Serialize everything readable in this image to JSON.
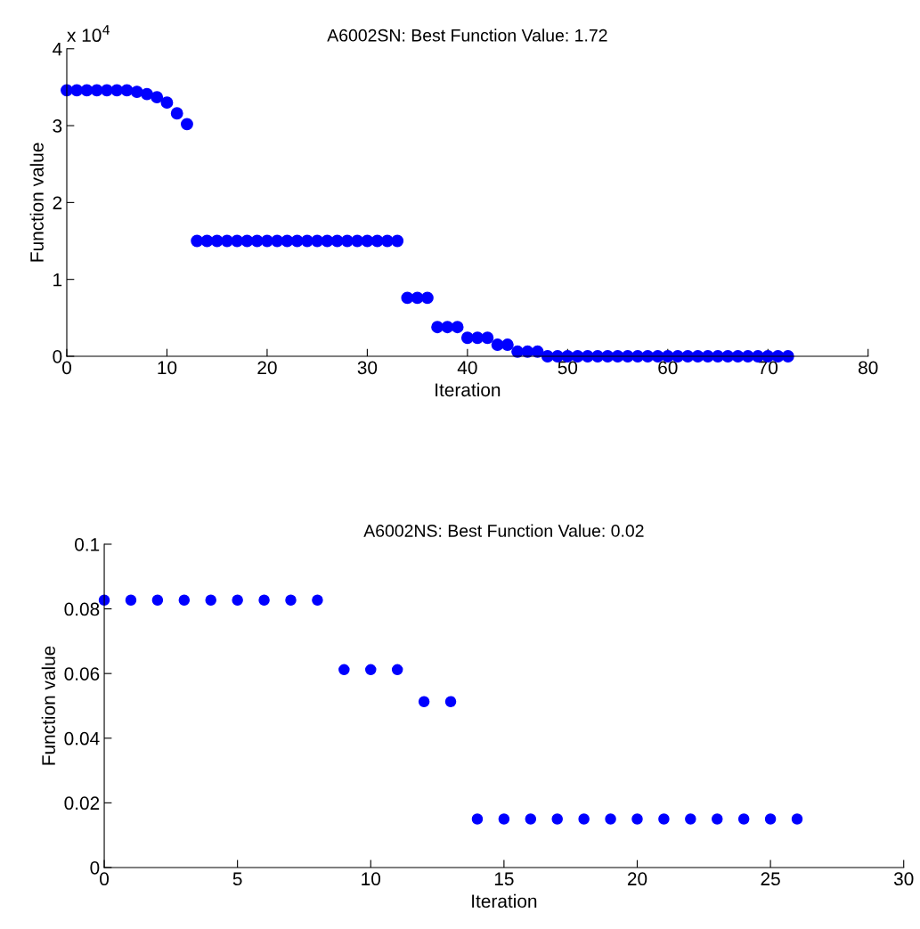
{
  "chart_data": [
    {
      "type": "scatter",
      "title": "A6002SN: Best Function Value: 1.72",
      "xlabel": "Iteration",
      "ylabel": "Function value",
      "annotations": [
        "x 10$^{4}$"
      ],
      "marker": "circle",
      "grid": false,
      "xlim": [
        0,
        80
      ],
      "xticks": [
        0,
        10,
        20,
        30,
        40,
        50,
        60,
        70,
        80
      ],
      "ylim": [
        0,
        4
      ],
      "yticks": [
        0,
        1,
        2,
        3,
        4
      ],
      "series": [
        {
          "color": "#0000ff",
          "x": [
            0,
            1,
            2,
            3,
            4,
            5,
            6,
            7,
            8,
            9,
            10,
            11,
            12,
            13,
            14,
            15,
            16,
            17,
            18,
            19,
            20,
            21,
            22,
            23,
            24,
            25,
            26,
            27,
            28,
            29,
            30,
            31,
            32,
            33,
            34,
            35,
            36,
            37,
            38,
            39,
            40,
            41,
            42,
            43,
            44,
            45,
            46,
            47,
            48,
            49,
            50,
            51,
            52,
            53,
            54,
            55,
            56,
            57,
            58,
            59,
            60,
            61,
            62,
            63,
            64,
            65,
            66,
            67,
            68,
            69,
            70,
            71,
            72
          ],
          "values": [
            3.46,
            3.46,
            3.46,
            3.46,
            3.46,
            3.46,
            3.46,
            3.44,
            3.41,
            3.37,
            3.3,
            3.16,
            3.02,
            1.5,
            1.5,
            1.5,
            1.5,
            1.5,
            1.5,
            1.5,
            1.5,
            1.5,
            1.5,
            1.5,
            1.5,
            1.5,
            1.5,
            1.5,
            1.5,
            1.5,
            1.5,
            1.5,
            1.5,
            1.5,
            0.76,
            0.76,
            0.76,
            0.38,
            0.38,
            0.38,
            0.24,
            0.24,
            0.24,
            0.15,
            0.15,
            0.06,
            0.06,
            0.06,
            0,
            0,
            0,
            0,
            0,
            0,
            0,
            0,
            0,
            0,
            0,
            0,
            0,
            0,
            0,
            0,
            0,
            0,
            0,
            0,
            0,
            0,
            0,
            0,
            0
          ]
        }
      ]
    },
    {
      "type": "scatter",
      "title": "A6002NS: Best Function Value: 0.02",
      "xlabel": "Iteration",
      "ylabel": "Function value",
      "marker": "circle",
      "grid": false,
      "xlim": [
        0,
        30
      ],
      "xticks": [
        0,
        5,
        10,
        15,
        20,
        25,
        30
      ],
      "ylim": [
        0,
        0.1
      ],
      "yticks": [
        0,
        0.02,
        0.04,
        0.06,
        0.08,
        0.1
      ],
      "series": [
        {
          "color": "#0000ff",
          "x": [
            0,
            1,
            2,
            3,
            4,
            5,
            6,
            7,
            8,
            9,
            10,
            11,
            12,
            13,
            14,
            15,
            16,
            17,
            18,
            19,
            20,
            21,
            22,
            23,
            24,
            25,
            26
          ],
          "values": [
            0.0827,
            0.0827,
            0.0827,
            0.0827,
            0.0827,
            0.0827,
            0.0827,
            0.0827,
            0.0827,
            0.0612,
            0.0612,
            0.0612,
            0.0513,
            0.0513,
            0.015,
            0.015,
            0.015,
            0.015,
            0.015,
            0.015,
            0.015,
            0.015,
            0.015,
            0.015,
            0.015,
            0.015,
            0.015
          ]
        }
      ]
    }
  ]
}
